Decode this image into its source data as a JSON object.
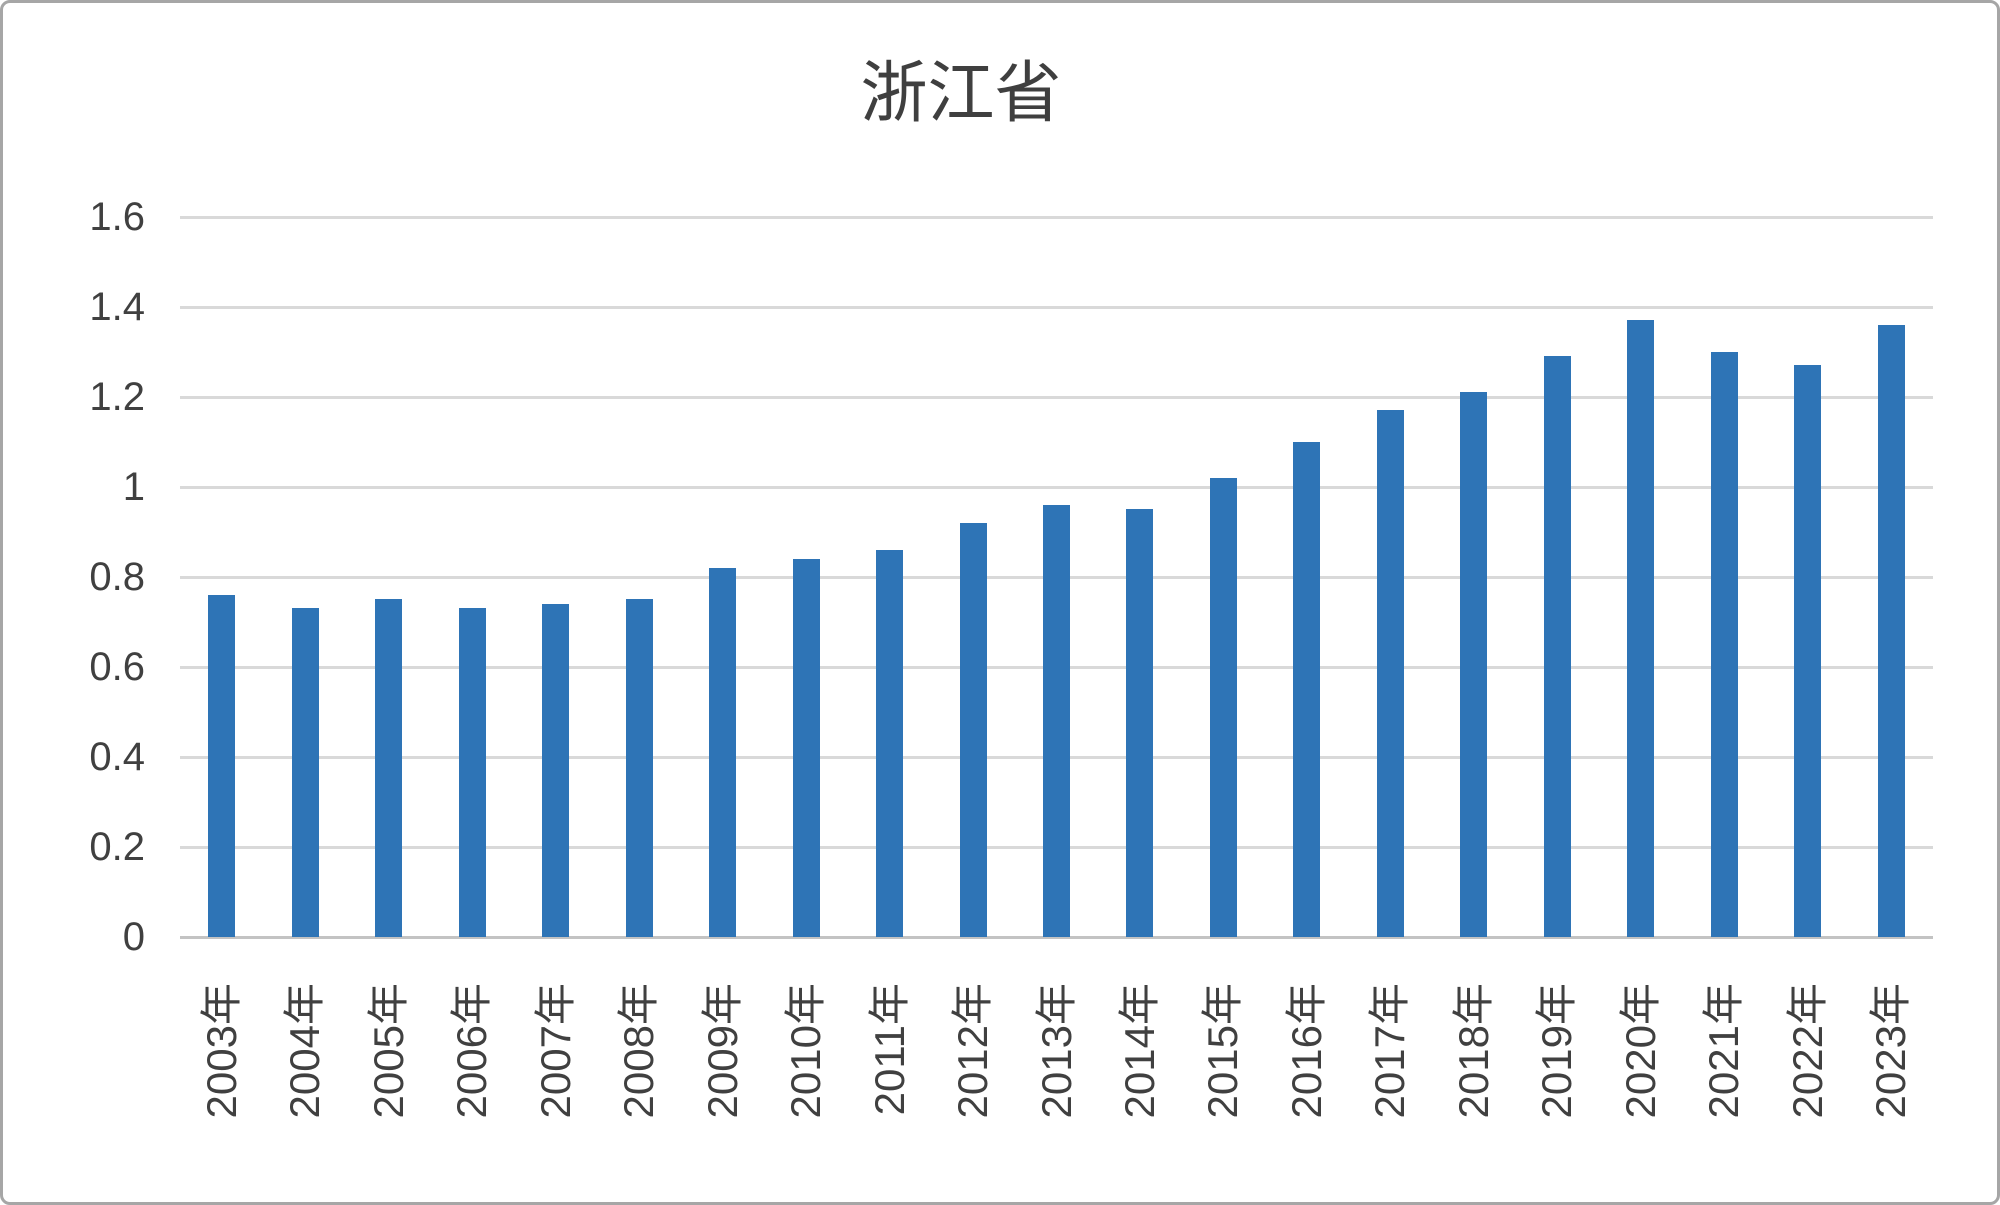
{
  "colors": {
    "bar": "#2E74B6",
    "gridline": "#D9D9D9",
    "axis_line": "#C3C3C3",
    "text": "#404040",
    "frame_border": "#A6A6A6",
    "background": "#FFFFFF"
  },
  "chart_data": {
    "type": "bar",
    "title": "浙江省",
    "categories": [
      "2003年",
      "2004年",
      "2005年",
      "2006年",
      "2007年",
      "2008年",
      "2009年",
      "2010年",
      "2011年",
      "2012年",
      "2013年",
      "2014年",
      "2015年",
      "2016年",
      "2017年",
      "2018年",
      "2019年",
      "2020年",
      "2021年",
      "2022年",
      "2023年"
    ],
    "values": [
      0.76,
      0.73,
      0.75,
      0.73,
      0.74,
      0.75,
      0.82,
      0.84,
      0.86,
      0.92,
      0.96,
      0.95,
      1.02,
      1.1,
      1.17,
      1.21,
      1.29,
      1.37,
      1.3,
      1.27,
      1.36
    ],
    "series_name": "",
    "xlabel": "",
    "ylabel": "",
    "ylim": [
      0,
      1.6
    ],
    "ytick_step": 0.2,
    "ytick_labels": [
      "0",
      "0.2",
      "0.4",
      "0.6",
      "0.8",
      "1",
      "1.2",
      "1.4",
      "1.6"
    ],
    "grid": "horizontal",
    "legend": "none",
    "data_labels": "none"
  }
}
